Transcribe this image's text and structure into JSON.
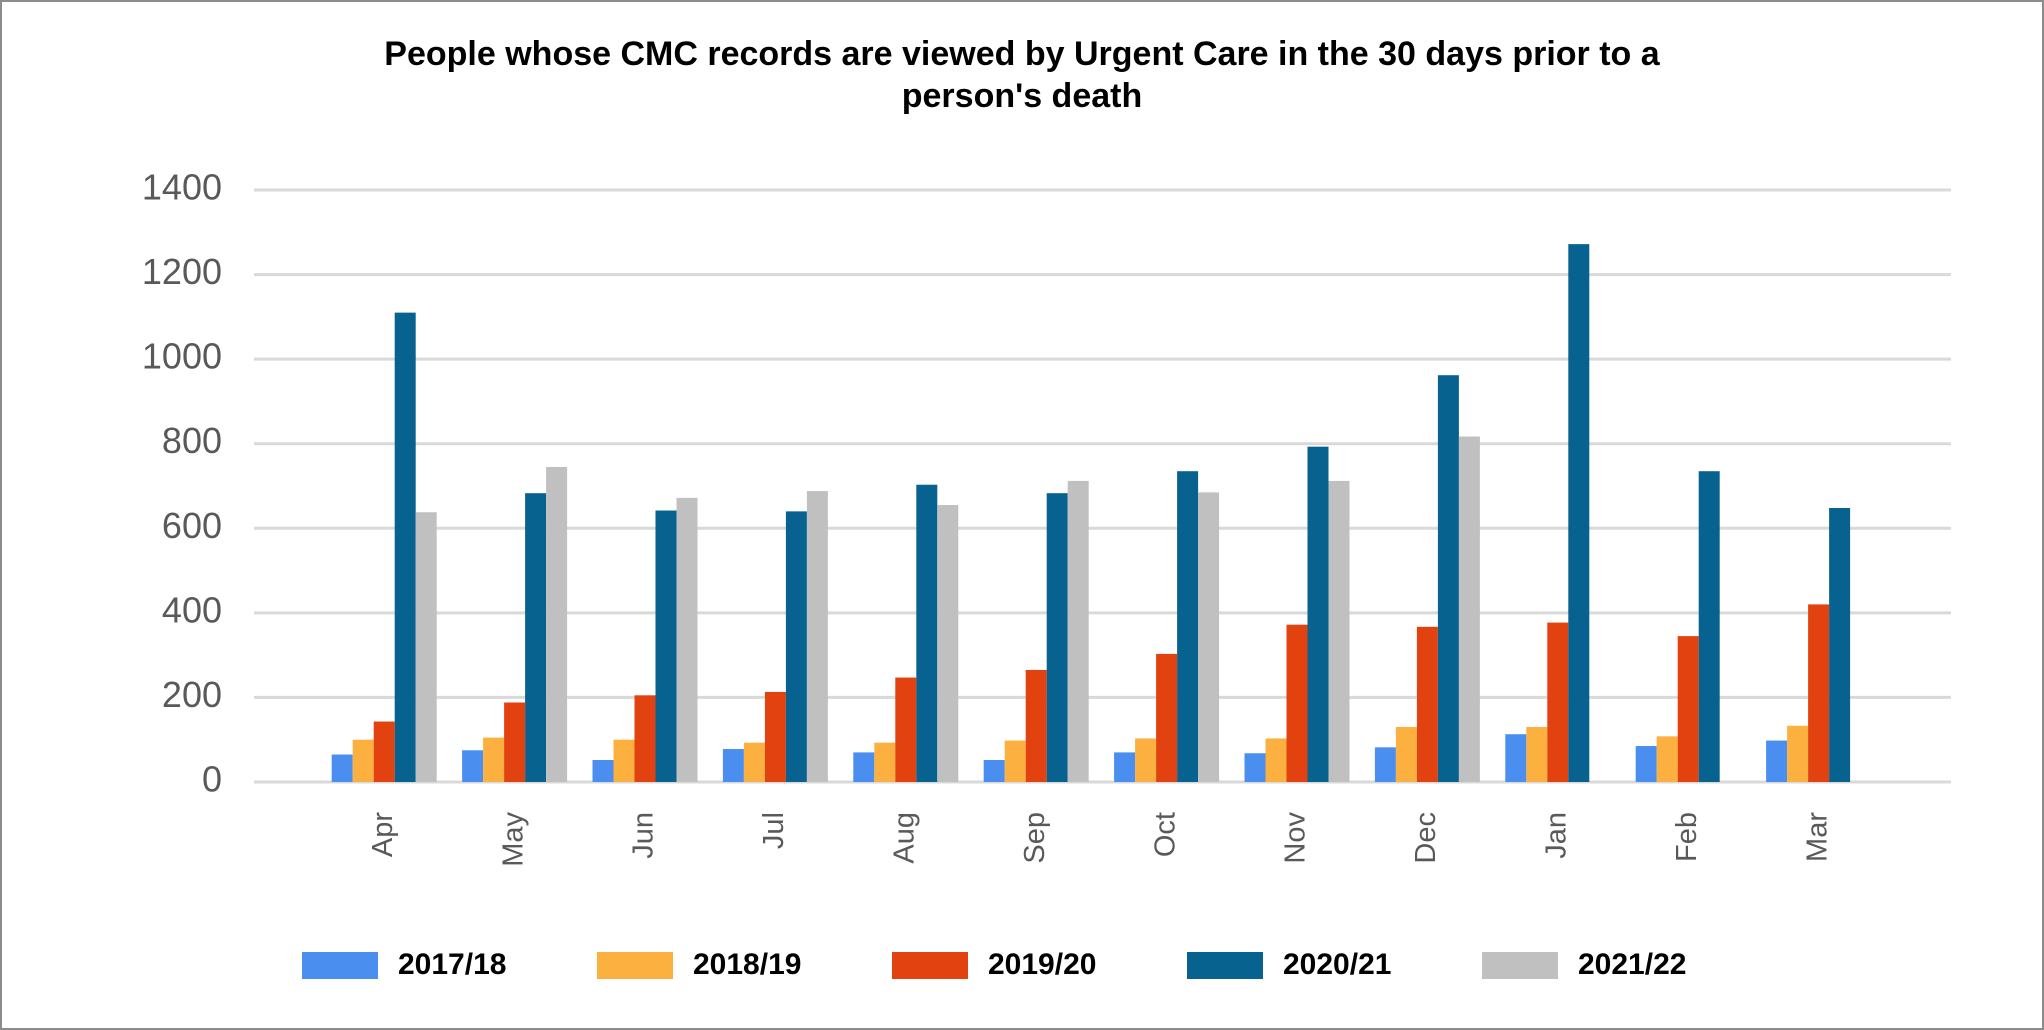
{
  "chart_data": {
    "type": "bar",
    "title": "People whose CMC records are viewed by Urgent Care  in the 30 days prior to a person's death",
    "categories": [
      "Apr",
      "May",
      "Jun",
      "Jul",
      "Aug",
      "Sep",
      "Oct",
      "Nov",
      "Dec",
      "Jan",
      "Feb",
      "Mar"
    ],
    "series": [
      {
        "name": "2017/18",
        "color": "#4a8ef0",
        "values": [
          65,
          75,
          52,
          78,
          70,
          52,
          70,
          68,
          82,
          113,
          85,
          98
        ]
      },
      {
        "name": "2018/19",
        "color": "#fbb040",
        "values": [
          100,
          105,
          100,
          93,
          93,
          98,
          103,
          103,
          130,
          130,
          108,
          133
        ]
      },
      {
        "name": "2019/20",
        "color": "#e2420f",
        "values": [
          143,
          188,
          205,
          213,
          247,
          265,
          303,
          372,
          367,
          377,
          345,
          420
        ]
      },
      {
        "name": "2020/21",
        "color": "#08628f",
        "values": [
          1110,
          683,
          642,
          640,
          703,
          683,
          735,
          793,
          962,
          1272,
          735,
          648
        ]
      },
      {
        "name": "2021/22",
        "color": "#c0c0c0",
        "values": [
          638,
          745,
          672,
          688,
          655,
          712,
          685,
          712,
          817,
          null,
          null,
          null
        ]
      }
    ],
    "ylim": [
      0,
      1400
    ],
    "yticks": [
      0,
      200,
      400,
      600,
      800,
      1000,
      1200,
      1400
    ],
    "grid": true,
    "legend": "bottom"
  }
}
